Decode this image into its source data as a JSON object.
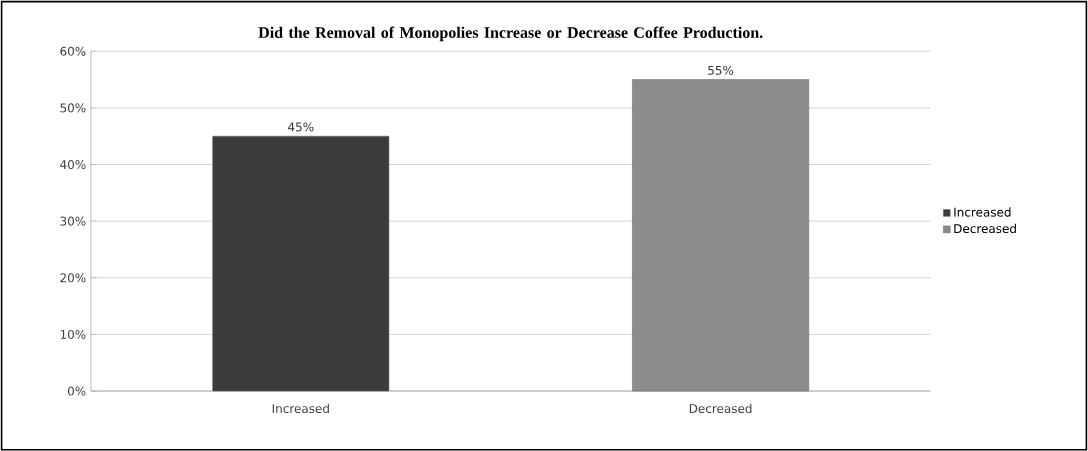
{
  "chart_data": {
    "type": "bar",
    "title": "Did the Removal of Monopolies Increase or Decrease Coffee Production.",
    "categories": [
      "Increased",
      "Decreased"
    ],
    "series": [
      {
        "name": "Increased",
        "color": "#3c3c3c",
        "values": [
          45,
          null
        ],
        "value_labels": [
          "45%",
          null
        ]
      },
      {
        "name": "Decreased",
        "color": "#8c8c8c",
        "values": [
          null,
          55
        ],
        "value_labels": [
          null,
          "55%"
        ]
      }
    ],
    "ylim": [
      0,
      60
    ],
    "yticks": [
      {
        "value": 0,
        "label": "0%"
      },
      {
        "value": 10,
        "label": "10%"
      },
      {
        "value": 20,
        "label": "20%"
      },
      {
        "value": 30,
        "label": "30%"
      },
      {
        "value": 40,
        "label": "40%"
      },
      {
        "value": 50,
        "label": "50%"
      },
      {
        "value": 60,
        "label": "60%"
      }
    ],
    "grid": "y",
    "legend": "right"
  }
}
